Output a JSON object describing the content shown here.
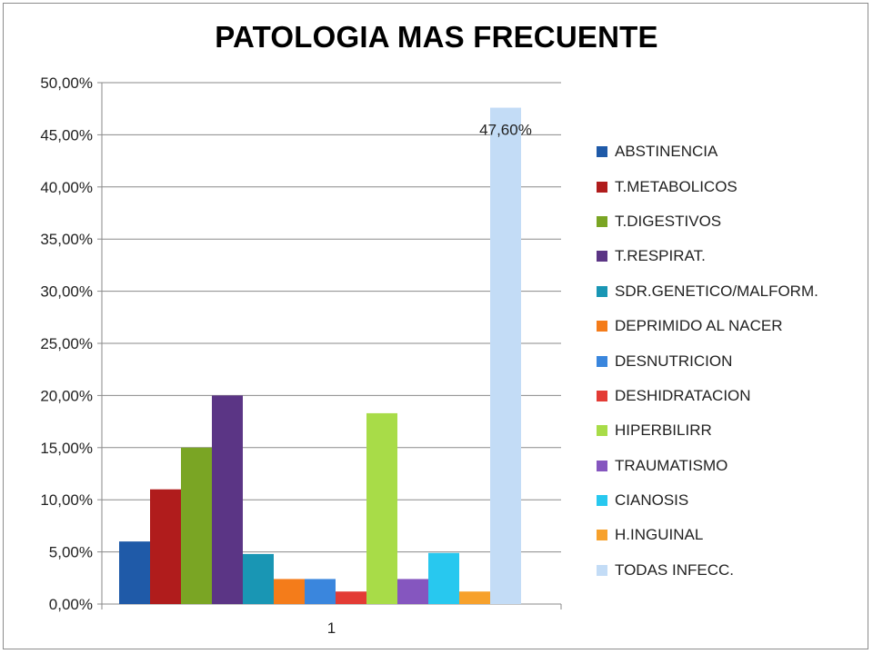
{
  "chart_data": {
    "type": "bar",
    "title": "PATOLOGIA MAS FRECUENTE",
    "categories": [
      "1"
    ],
    "ylim": [
      0,
      50
    ],
    "yticks": [
      "0,00%",
      "5,00%",
      "10,00%",
      "15,00%",
      "20,00%",
      "25,00%",
      "30,00%",
      "35,00%",
      "40,00%",
      "45,00%",
      "50,00%"
    ],
    "grid": true,
    "legend_position": "right",
    "series": [
      {
        "name": "ABSTINENCIA",
        "values": [
          6.0
        ],
        "color": "#1f5aa8"
      },
      {
        "name": "T.METABOLICOS",
        "values": [
          11.0
        ],
        "color": "#b01c1c"
      },
      {
        "name": "T.DIGESTIVOS",
        "values": [
          15.0
        ],
        "color": "#7aa524"
      },
      {
        "name": "T.RESPIRAT.",
        "values": [
          20.0
        ],
        "color": "#5b3585"
      },
      {
        "name": "SDR.GENETICO/MALFORM.",
        "values": [
          4.8
        ],
        "color": "#1996b4"
      },
      {
        "name": "DEPRIMIDO AL NACER",
        "values": [
          2.4
        ],
        "color": "#f47c1a"
      },
      {
        "name": "DESNUTRICION",
        "values": [
          2.4
        ],
        "color": "#3a86dd"
      },
      {
        "name": "DESHIDRATACION",
        "values": [
          1.2
        ],
        "color": "#e33b35"
      },
      {
        "name": "HIPERBILIRR",
        "values": [
          18.3
        ],
        "color": "#a8dc48"
      },
      {
        "name": "TRAUMATISMO",
        "values": [
          2.4
        ],
        "color": "#8556bf"
      },
      {
        "name": "CIANOSIS",
        "values": [
          4.9
        ],
        "color": "#28c8ef"
      },
      {
        "name": "H.INGUINAL",
        "values": [
          1.2
        ],
        "color": "#f7a12c"
      },
      {
        "name": "TODAS INFECC.",
        "values": [
          47.6
        ],
        "color": "#c3dcf6"
      }
    ],
    "data_labels": [
      {
        "series": "TODAS INFECC.",
        "text": "47,60%"
      }
    ]
  }
}
